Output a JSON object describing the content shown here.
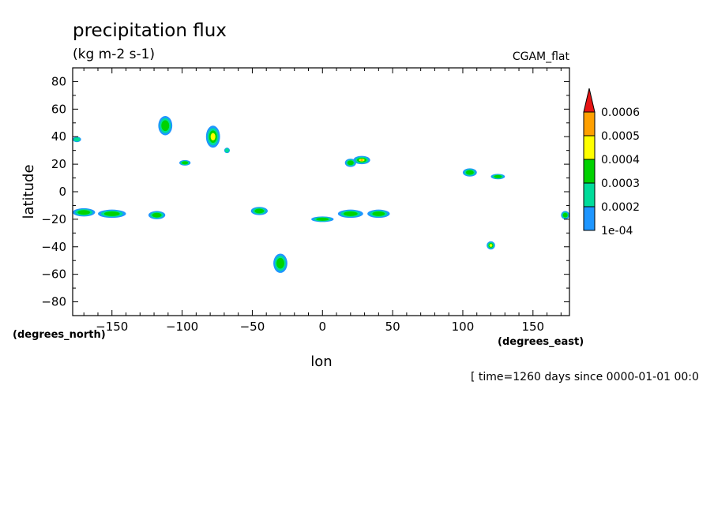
{
  "chart_data": {
    "type": "heatmap",
    "title": "precipitation flux",
    "subtitle": "(kg m-2 s-1)",
    "run_label": "CGAM_flat",
    "xlabel": "lon",
    "ylabel": "latitude",
    "x_units": "(degrees_east)",
    "y_units": "(degrees_north)",
    "time_label": "[ time=1260 days since 0000-01-01 00:0",
    "xlim": [
      -178,
      176
    ],
    "ylim": [
      -90,
      90
    ],
    "x_ticks": [
      -150,
      -100,
      -50,
      0,
      50,
      100,
      150
    ],
    "y_ticks": [
      80,
      60,
      40,
      20,
      0,
      -20,
      -40,
      -60,
      -80
    ],
    "grid": false,
    "legend_placement": "right",
    "colorbar": {
      "colors": [
        "#1e96ff",
        "#00dc9a",
        "#00d200",
        "#ffff00",
        "#ffa000",
        "#e61414"
      ],
      "labels": [
        "1e-04",
        "0.0002",
        "0.0003",
        "0.0004",
        "0.0005",
        "0.0006"
      ],
      "extend_max": true
    },
    "blobs": [
      {
        "lon": -170,
        "lat": -15,
        "rlon": 8,
        "rlat": 3,
        "level": 2
      },
      {
        "lon": -150,
        "lat": -16,
        "rlon": 10,
        "rlat": 3,
        "level": 2
      },
      {
        "lon": -175,
        "lat": 38,
        "rlon": 3,
        "rlat": 2,
        "level": 1
      },
      {
        "lon": -118,
        "lat": -17,
        "rlon": 6,
        "rlat": 3,
        "level": 2
      },
      {
        "lon": -112,
        "lat": 48,
        "rlon": 5,
        "rlat": 7,
        "level": 2
      },
      {
        "lon": -98,
        "lat": 21,
        "rlon": 4,
        "rlat": 2,
        "level": 2
      },
      {
        "lon": -78,
        "lat": 40,
        "rlon": 5,
        "rlat": 8,
        "level": 3
      },
      {
        "lon": -30,
        "lat": -52,
        "rlon": 5,
        "rlat": 7,
        "level": 2
      },
      {
        "lon": -45,
        "lat": -14,
        "rlon": 6,
        "rlat": 3,
        "level": 2
      },
      {
        "lon": 20,
        "lat": 21,
        "rlon": 4,
        "rlat": 3,
        "level": 2
      },
      {
        "lon": 28,
        "lat": 23,
        "rlon": 6,
        "rlat": 3,
        "level": 5
      },
      {
        "lon": 20,
        "lat": -16,
        "rlon": 9,
        "rlat": 3,
        "level": 2
      },
      {
        "lon": 40,
        "lat": -16,
        "rlon": 8,
        "rlat": 3,
        "level": 2
      },
      {
        "lon": 0,
        "lat": -20,
        "rlon": 8,
        "rlat": 2,
        "level": 2
      },
      {
        "lon": 105,
        "lat": 14,
        "rlon": 5,
        "rlat": 3,
        "level": 2
      },
      {
        "lon": 125,
        "lat": 11,
        "rlon": 5,
        "rlat": 2,
        "level": 2
      },
      {
        "lon": 120,
        "lat": -39,
        "rlon": 3,
        "rlat": 3,
        "level": 3
      },
      {
        "lon": 173,
        "lat": -17,
        "rlon": 3,
        "rlat": 3,
        "level": 2
      },
      {
        "lon": -68,
        "lat": 30,
        "rlon": 2,
        "rlat": 2,
        "level": 1
      }
    ]
  }
}
